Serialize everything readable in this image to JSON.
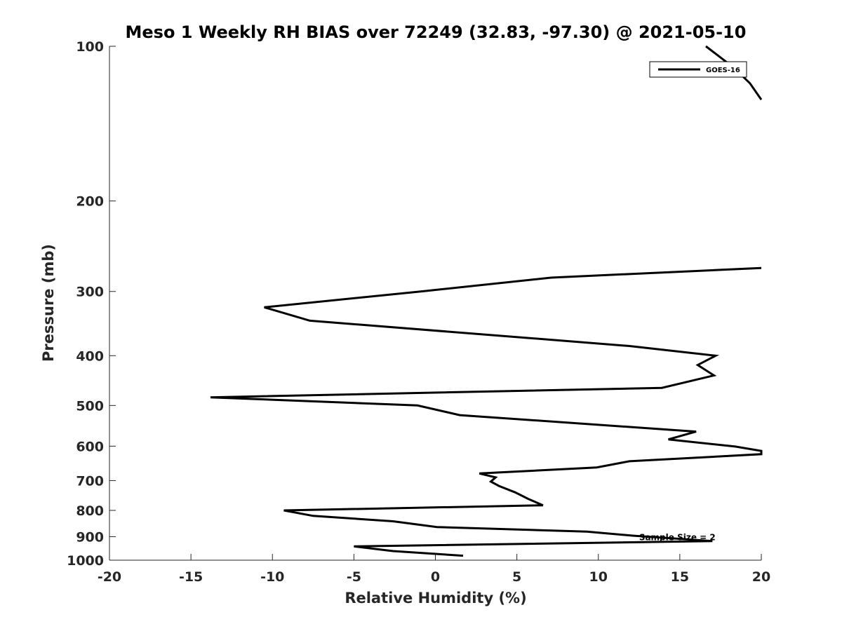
{
  "chart_data": {
    "type": "line",
    "title": "Meso 1 Weekly RH BIAS over 72249 (32.83, -97.30) @ 2021-05-10",
    "xlabel": "Relative Humidity (%)",
    "ylabel": "Pressure (mb)",
    "xlim": [
      -20,
      20
    ],
    "ylim": [
      100,
      1000
    ],
    "y_scale": "log",
    "y_reversed": true,
    "grid": false,
    "legend_position": "top-right",
    "x_ticks": [
      -20,
      -15,
      -10,
      -5,
      0,
      5,
      10,
      15,
      20
    ],
    "x_tick_labels": [
      "-20",
      "-15",
      "-10",
      "-5",
      "0",
      "5",
      "10",
      "15",
      "20"
    ],
    "y_ticks": [
      100,
      200,
      300,
      400,
      500,
      600,
      700,
      800,
      900,
      1000
    ],
    "y_tick_labels": [
      "100",
      "200",
      "300",
      "400",
      "500",
      "600",
      "700",
      "800",
      "900",
      "1000"
    ],
    "annotations": [
      {
        "text": "Sample Size = 2",
        "x": 12.5,
        "y": 900
      }
    ],
    "series": [
      {
        "name": "GOES-16",
        "color": "#000000",
        "segments": [
          [
            {
              "x": 16.6,
              "y": 100
            },
            {
              "x": 18.3,
              "y": 110
            },
            {
              "x": 19.3,
              "y": 118
            },
            {
              "x": 20.0,
              "y": 127
            }
          ],
          [
            {
              "x": 20.0,
              "y": 270
            },
            {
              "x": 7.1,
              "y": 282
            },
            {
              "x": -0.9,
              "y": 300
            },
            {
              "x": -10.5,
              "y": 322
            },
            {
              "x": -7.7,
              "y": 342
            },
            {
              "x": 11.9,
              "y": 383
            },
            {
              "x": 17.2,
              "y": 400
            },
            {
              "x": 16.1,
              "y": 417
            },
            {
              "x": 17.1,
              "y": 437
            },
            {
              "x": 13.9,
              "y": 462
            },
            {
              "x": -13.8,
              "y": 482
            },
            {
              "x": -1.1,
              "y": 500
            },
            {
              "x": 1.5,
              "y": 522
            },
            {
              "x": 16.0,
              "y": 562
            },
            {
              "x": 14.3,
              "y": 582
            },
            {
              "x": 18.4,
              "y": 601
            },
            {
              "x": 20.0,
              "y": 613
            },
            {
              "x": 20.0,
              "y": 622
            },
            {
              "x": 11.9,
              "y": 642
            },
            {
              "x": 9.9,
              "y": 660
            },
            {
              "x": 2.7,
              "y": 678
            },
            {
              "x": 3.7,
              "y": 690
            },
            {
              "x": 3.4,
              "y": 703
            },
            {
              "x": 3.9,
              "y": 717
            },
            {
              "x": 4.9,
              "y": 738
            },
            {
              "x": 5.7,
              "y": 760
            },
            {
              "x": 6.6,
              "y": 782
            },
            {
              "x": -9.3,
              "y": 800
            },
            {
              "x": -7.5,
              "y": 820
            },
            {
              "x": -2.6,
              "y": 840
            },
            {
              "x": 0.1,
              "y": 862
            },
            {
              "x": 9.3,
              "y": 880
            },
            {
              "x": 12.1,
              "y": 896
            },
            {
              "x": 17.0,
              "y": 918
            },
            {
              "x": -5.0,
              "y": 940
            },
            {
              "x": -2.6,
              "y": 960
            },
            {
              "x": 1.7,
              "y": 980
            }
          ]
        ]
      }
    ]
  }
}
